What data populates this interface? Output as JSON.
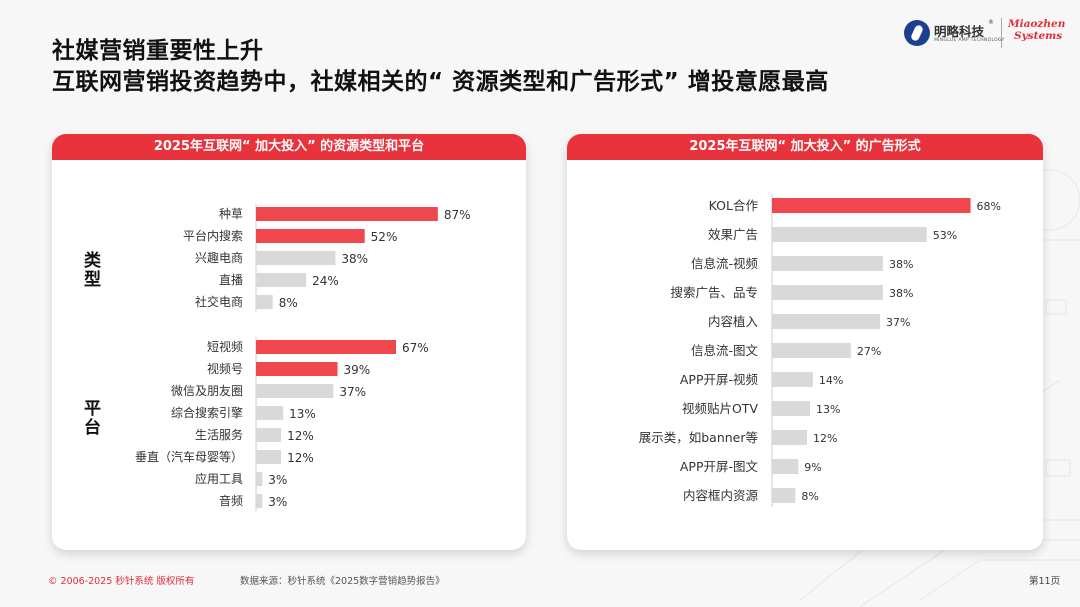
{
  "title_line1": "社媒营销重要性上升",
  "title_line2": "互联网营销投资趋势中，社媒相关的“ 资源类型和广告形式” 增投意愿最高",
  "logo": {
    "cn_name": "明略科技",
    "reg_mark": "®",
    "en_small": "MINGLUE AMP TECHNOLOGY",
    "partner_line1": "Miaozhen",
    "partner_line2": "Systems"
  },
  "colors": {
    "accent": "#e8333c",
    "bar_highlight": "#f0474f",
    "bar_default": "#d9d9d9"
  },
  "chart_data": [
    {
      "type": "bar",
      "orientation": "horizontal",
      "title": "2025年互联网“ 加大投入” 的资源类型和平台",
      "value_format": "percent",
      "groups": [
        {
          "label": "类型",
          "categories": [
            "种草",
            "平台内搜索",
            "兴趣电商",
            "直播",
            "社交电商"
          ],
          "values": [
            87,
            52,
            38,
            24,
            8
          ],
          "highlighted": [
            true,
            true,
            false,
            false,
            false
          ]
        },
        {
          "label": "平台",
          "categories": [
            "短视频",
            "视频号",
            "微信及朋友圈",
            "综合搜索引擎",
            "生活服务",
            "垂直（汽车母婴等）",
            "应用工具",
            "音频"
          ],
          "values": [
            67,
            39,
            37,
            13,
            12,
            12,
            3,
            3
          ],
          "highlighted": [
            true,
            true,
            false,
            false,
            false,
            false,
            false,
            false
          ]
        }
      ]
    },
    {
      "type": "bar",
      "orientation": "horizontal",
      "title": "2025年互联网“ 加大投入” 的广告形式",
      "value_format": "percent",
      "categories": [
        "KOL合作",
        "效果广告",
        "信息流-视频",
        "搜索广告、品专",
        "内容植入",
        "信息流-图文",
        "APP开屏-视频",
        "视频贴片OTV",
        "展示类，如banner等",
        "APP开屏-图文",
        "内容框内资源"
      ],
      "values": [
        68,
        53,
        38,
        38,
        37,
        27,
        14,
        13,
        12,
        9,
        8
      ],
      "highlighted": [
        true,
        false,
        false,
        false,
        false,
        false,
        false,
        false,
        false,
        false,
        false
      ]
    }
  ],
  "footer": {
    "copyright": "© 2006-2025 秒针系统 版权所有",
    "source": "数据来源：秒针系统《2025数字营销趋势报告》",
    "page": "第11页"
  }
}
